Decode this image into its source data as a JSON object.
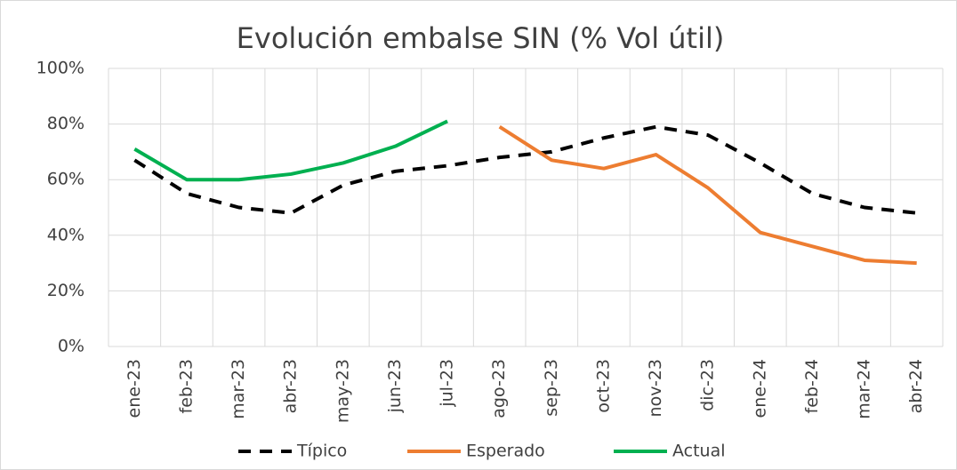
{
  "chart_data": {
    "type": "line",
    "title": "Evolución embalse SIN (% Vol útil)",
    "categories": [
      "ene-23",
      "feb-23",
      "mar-23",
      "abr-23",
      "may-23",
      "jun-23",
      "jul-23",
      "ago-23",
      "sep-23",
      "oct-23",
      "nov-23",
      "dic-23",
      "ene-24",
      "feb-24",
      "mar-24",
      "abr-24"
    ],
    "series": [
      {
        "name": "Típico",
        "color": "#000000",
        "style": "dashed",
        "values": [
          67,
          55,
          50,
          48,
          58,
          63,
          65,
          68,
          70,
          75,
          79,
          76,
          66,
          55,
          50,
          48
        ]
      },
      {
        "name": "Esperado",
        "color": "#ed7d31",
        "style": "solid",
        "values": [
          null,
          null,
          null,
          null,
          null,
          null,
          null,
          79,
          67,
          64,
          69,
          57,
          41,
          36,
          31,
          30
        ]
      },
      {
        "name": "Actual",
        "color": "#00b050",
        "style": "solid",
        "values": [
          71,
          60,
          60,
          62,
          66,
          72,
          81,
          null,
          null,
          null,
          null,
          null,
          null,
          null,
          null,
          null
        ]
      }
    ],
    "ylim": [
      0,
      100
    ],
    "yticks": [
      {
        "value": 0,
        "label": "0%"
      },
      {
        "value": 20,
        "label": "20%"
      },
      {
        "value": 40,
        "label": "40%"
      },
      {
        "value": 60,
        "label": "60%"
      },
      {
        "value": 80,
        "label": "80%"
      },
      {
        "value": 100,
        "label": "100%"
      }
    ],
    "grid": true,
    "legend": "bottom"
  }
}
